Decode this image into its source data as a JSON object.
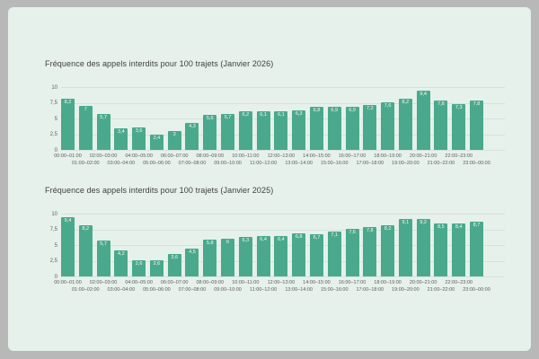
{
  "frame": {
    "background": "#b8b8b8",
    "panel_background": "#e6f1eb"
  },
  "colors": {
    "bar": "#4aa98c",
    "bar_value_label": "#f4faf7",
    "gridline": "#d6e2dc",
    "title_text": "#3f3f3f",
    "axis_text": "#616161"
  },
  "chart_data": [
    {
      "type": "bar",
      "title": "Fréquence des appels interdits pour 100 trajets (Janvier 2026)",
      "categories": [
        "00:00–01:00",
        "01:00–02:00",
        "02:00–03:00",
        "03:00–04:00",
        "04:00–05:00",
        "05:00–06:00",
        "06:00–07:00",
        "07:00–08:00",
        "08:00–09:00",
        "09:00–10:00",
        "10:00–11:00",
        "11:00–12:00",
        "12:00–13:00",
        "13:00–14:00",
        "14:00–15:00",
        "15:00–16:00",
        "16:00–17:00",
        "17:00–18:00",
        "18:00–19:00",
        "19:00–20:00",
        "20:00–21:00",
        "21:00–22:00",
        "22:00–23:00",
        "23:00–00:00"
      ],
      "values": [
        8.2,
        7,
        5.7,
        3.4,
        3.6,
        2.4,
        3,
        4.3,
        5.6,
        5.7,
        6.2,
        6.1,
        6.1,
        6.3,
        6.8,
        6.9,
        6.9,
        7.2,
        7.6,
        8.2,
        9.4,
        7.8,
        7.3,
        7.8
      ],
      "value_labels": [
        "8,2",
        "7",
        "5,7",
        "3,4",
        "3,6",
        "2,4",
        "3",
        "4,3",
        "5,6",
        "5,7",
        "6,2",
        "6,1",
        "6,1",
        "6,3",
        "6,8",
        "6,9",
        "6,9",
        "7,2",
        "7,6",
        "8,2",
        "9,4",
        "7,8",
        "7,3",
        "7,8"
      ],
      "xlabel": "",
      "ylabel": "",
      "ylim": [
        0,
        10
      ],
      "ytick_values": [
        0,
        2.5,
        5,
        7.5,
        10
      ],
      "ytick_labels": [
        "0",
        "2,5",
        "5",
        "7,5",
        "10"
      ],
      "grid": true,
      "legend": false
    },
    {
      "type": "bar",
      "title": "Fréquence des appels interdits pour 100 trajets (Janvier 2025)",
      "categories": [
        "00:00–01:00",
        "01:00–02:00",
        "02:00–03:00",
        "03:00–04:00",
        "04:00–05:00",
        "05:00–06:00",
        "06:00–07:00",
        "07:00–08:00",
        "08:00–09:00",
        "09:00–10:00",
        "10:00–11:00",
        "11:00–12:00",
        "12:00–13:00",
        "13:00–14:00",
        "14:00–15:00",
        "15:00–16:00",
        "16:00–17:00",
        "17:00–18:00",
        "18:00–19:00",
        "19:00–20:00",
        "20:00–21:00",
        "21:00–22:00",
        "22:00–23:00",
        "23:00–00:00"
      ],
      "values": [
        9.4,
        8.2,
        5.7,
        4.2,
        2.6,
        2.6,
        3.6,
        4.5,
        5.8,
        6,
        6.3,
        6.4,
        6.4,
        6.8,
        6.7,
        7.1,
        7.6,
        7.8,
        8.2,
        9.1,
        9.2,
        8.5,
        8.4,
        8.7
      ],
      "value_labels": [
        "9,4",
        "8,2",
        "5,7",
        "4,2",
        "2,6",
        "2,6",
        "3,6",
        "4,5",
        "5,8",
        "6",
        "6,3",
        "6,4",
        "6,4",
        "6,8",
        "6,7",
        "7,1",
        "7,6",
        "7,8",
        "8,2",
        "9,1",
        "9,2",
        "8,5",
        "8,4",
        "8,7"
      ],
      "xlabel": "",
      "ylabel": "",
      "ylim": [
        0,
        10
      ],
      "ytick_values": [
        0,
        2.5,
        5,
        7.5,
        10
      ],
      "ytick_labels": [
        "0",
        "2,5",
        "5",
        "7,5",
        "10"
      ],
      "grid": true,
      "legend": false
    }
  ]
}
